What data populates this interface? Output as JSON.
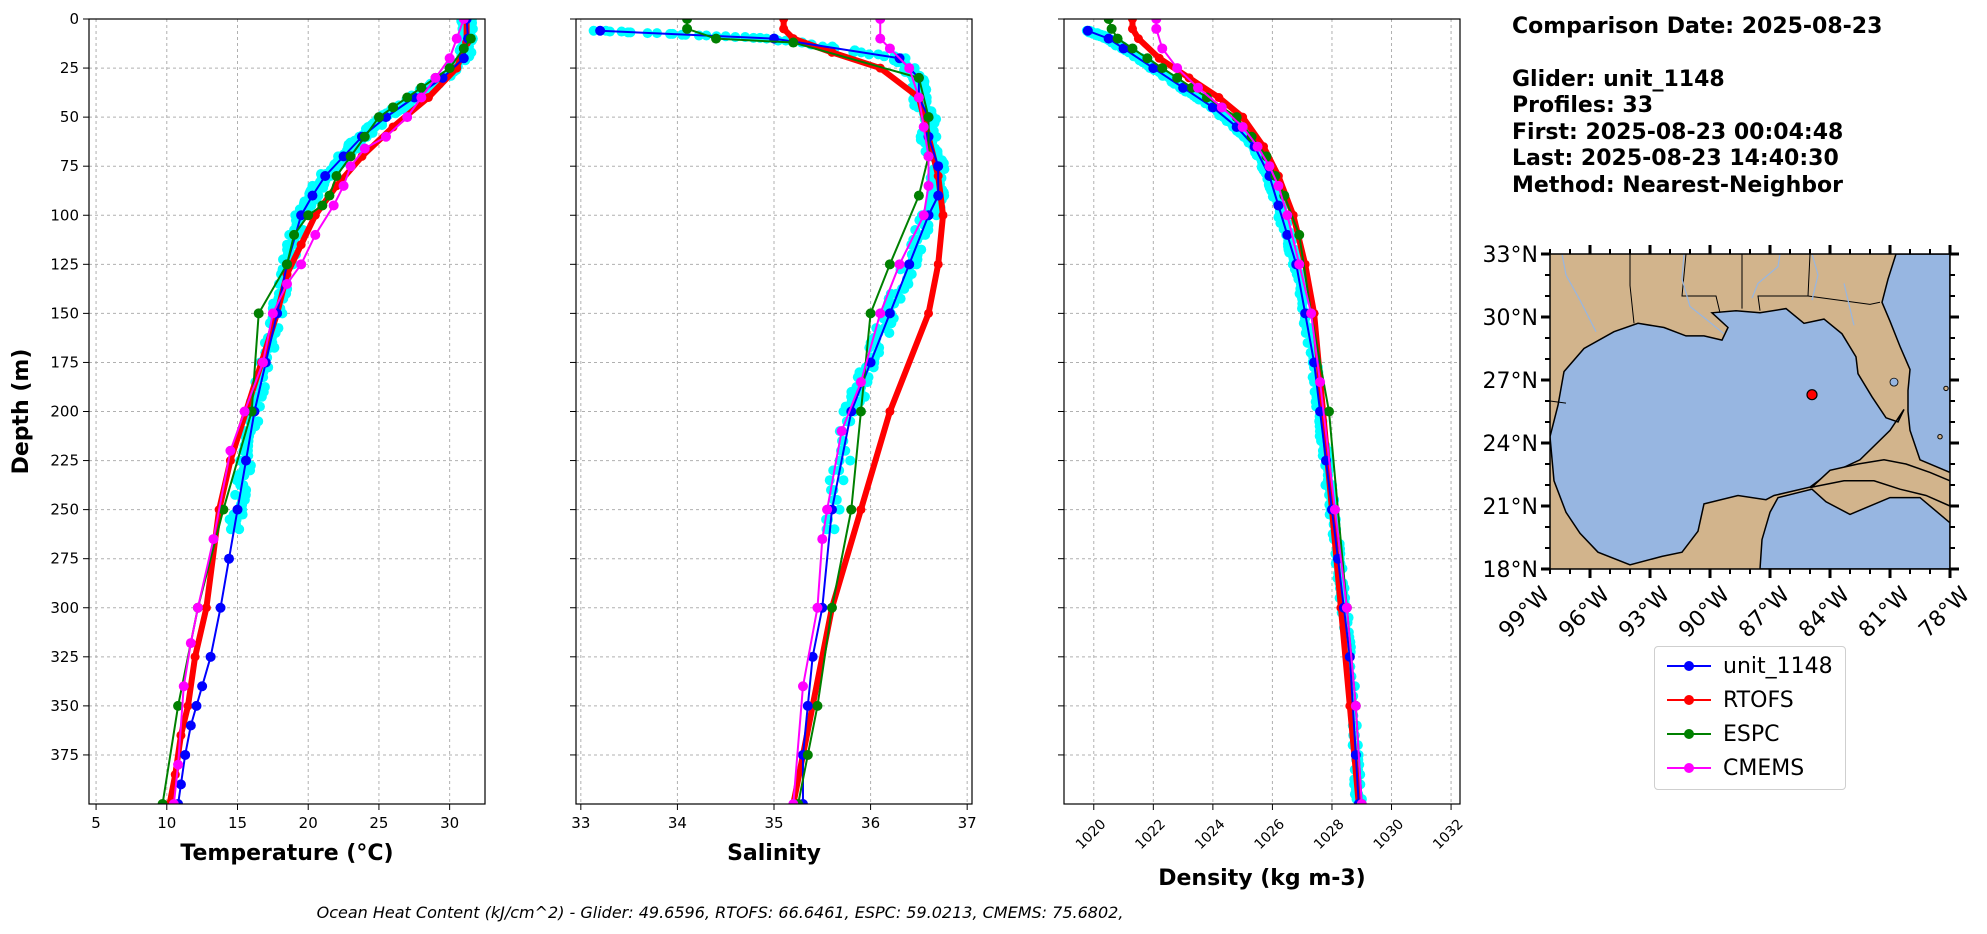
{
  "info": {
    "comparison": "Comparison Date: 2025-08-23",
    "glider": "Glider: unit_1148",
    "profiles": "Profiles: 33",
    "first": "First: 2025-08-23 00:04:48",
    "last": "Last: 2025-08-23 14:40:30",
    "method": "Method: Nearest-Neighbor"
  },
  "footer": "Ocean Heat Content (kJ/cm^2) - Glider: 49.6596,  RTOFS: 66.6461,  ESPC: 59.0213,  CMEMS: 75.6802,",
  "legend": [
    {
      "label": "unit_1148",
      "color": "#0000ff"
    },
    {
      "label": "RTOFS",
      "color": "#ff0000"
    },
    {
      "label": "ESPC",
      "color": "#008000"
    },
    {
      "label": "CMEMS",
      "color": "#ff00ff"
    }
  ],
  "glider_swath_color": "#00ffff",
  "chart_data": [
    {
      "type": "line",
      "xlabel": "Temperature (°C)",
      "ylabel": "Depth (m)",
      "xlim": [
        4.5,
        32.5
      ],
      "ylim": [
        400,
        0
      ],
      "xticks": [
        5,
        10,
        15,
        20,
        25,
        30
      ],
      "yticks": [
        0,
        25,
        50,
        75,
        100,
        125,
        150,
        175,
        200,
        225,
        250,
        275,
        300,
        325,
        350,
        375
      ],
      "grid": true,
      "series": [
        {
          "name": "unit_1148",
          "color": "#0000ff",
          "x": [
            31.2,
            31.3,
            31.0,
            29.5,
            27.5,
            25.5,
            23.8,
            22.5,
            21.2,
            20.3,
            19.5,
            18.5,
            17.8,
            17.0,
            16.2,
            15.6,
            15.0,
            14.4,
            13.8,
            13.1,
            12.5,
            12.1,
            11.7,
            11.3,
            11.0,
            10.8
          ],
          "y": [
            0,
            10,
            20,
            30,
            40,
            50,
            60,
            70,
            80,
            90,
            100,
            125,
            150,
            175,
            200,
            225,
            250,
            275,
            300,
            325,
            340,
            350,
            360,
            375,
            390,
            400
          ]
        },
        {
          "name": "RTOFS",
          "color": "#ff0000",
          "x": [
            31.2,
            31.2,
            30.5,
            28.5,
            26.0,
            23.8,
            22.0,
            20.5,
            19.5,
            18.5,
            17.8,
            16.7,
            15.6,
            14.5,
            13.7,
            12.8,
            12.0,
            11.5,
            11.0,
            10.6,
            10.2
          ],
          "y": [
            0,
            12,
            25,
            40,
            55,
            70,
            85,
            100,
            115,
            130,
            150,
            175,
            200,
            225,
            250,
            300,
            325,
            350,
            365,
            385,
            400
          ]
        },
        {
          "name": "ESPC",
          "color": "#008000",
          "x": [
            31.5,
            31.0,
            30.0,
            29.0,
            28.0,
            27.0,
            26.0,
            25.0,
            24.0,
            23.0,
            22.0,
            21.5,
            21.0,
            20.0,
            19.0,
            18.5,
            16.5,
            16.0,
            14.0,
            12.2,
            10.8,
            9.7
          ],
          "y": [
            10,
            15,
            25,
            30,
            35,
            40,
            45,
            50,
            60,
            70,
            80,
            90,
            95,
            100,
            110,
            125,
            150,
            200,
            250,
            300,
            350,
            400
          ]
        },
        {
          "name": "CMEMS",
          "color": "#ff00ff",
          "x": [
            31.0,
            30.5,
            30.0,
            29.0,
            28.0,
            27.0,
            25.5,
            24.0,
            23.0,
            22.5,
            21.8,
            20.5,
            19.5,
            18.5,
            17.5,
            16.8,
            15.5,
            14.5,
            13.3,
            12.2,
            11.7,
            11.2,
            10.8,
            10.5
          ],
          "y": [
            0,
            10,
            20,
            30,
            40,
            50,
            60,
            66,
            75,
            85,
            95,
            110,
            125,
            135,
            150,
            175,
            200,
            220,
            265,
            300,
            318,
            340,
            380,
            400
          ]
        }
      ]
    },
    {
      "type": "line",
      "xlabel": "Salinity",
      "xlim": [
        32.95,
        37.05
      ],
      "ylim": [
        400,
        0
      ],
      "xticks": [
        33,
        34,
        35,
        36,
        37
      ],
      "grid": true,
      "series": [
        {
          "name": "unit_1148",
          "color": "#0000ff",
          "x": [
            33.2,
            35.0,
            36.3,
            36.5,
            36.5,
            36.6,
            36.6,
            36.7,
            36.7,
            36.6,
            36.4,
            36.2,
            36.0,
            35.8,
            35.6,
            35.5,
            35.4,
            35.35,
            35.3,
            35.3
          ],
          "y": [
            6,
            10,
            20,
            30,
            40,
            50,
            60,
            75,
            90,
            100,
            125,
            150,
            175,
            200,
            250,
            300,
            325,
            350,
            375,
            400
          ]
        },
        {
          "name": "RTOFS",
          "color": "#ff0000",
          "x": [
            35.1,
            35.1,
            35.2,
            35.6,
            36.1,
            36.5,
            36.6,
            36.7,
            36.75,
            36.7,
            36.6,
            36.2,
            35.9,
            35.6,
            35.4,
            35.2
          ],
          "y": [
            0,
            5,
            10,
            17,
            25,
            40,
            60,
            80,
            100,
            125,
            150,
            200,
            250,
            300,
            350,
            400
          ]
        },
        {
          "name": "ESPC",
          "color": "#008000",
          "x": [
            34.1,
            34.1,
            34.4,
            35.2,
            36.5,
            36.6,
            36.6,
            36.5,
            36.2,
            36.0,
            35.9,
            35.8,
            35.6,
            35.45,
            35.35,
            35.25
          ],
          "y": [
            0,
            5,
            10,
            12,
            30,
            50,
            70,
            90,
            125,
            150,
            200,
            250,
            300,
            350,
            375,
            400
          ]
        },
        {
          "name": "CMEMS",
          "color": "#ff00ff",
          "x": [
            36.1,
            36.1,
            36.2,
            36.4,
            36.5,
            36.55,
            36.6,
            36.6,
            36.55,
            36.3,
            36.1,
            35.9,
            35.7,
            35.55,
            35.5,
            35.45,
            35.3,
            35.2
          ],
          "y": [
            0,
            10,
            15,
            25,
            40,
            55,
            70,
            85,
            100,
            125,
            150,
            185,
            210,
            250,
            265,
            300,
            340,
            400
          ]
        }
      ]
    },
    {
      "type": "line",
      "xlabel": "Density (kg m-3)",
      "xlim": [
        1019.0,
        1032.3
      ],
      "ylim": [
        400,
        0
      ],
      "xticks": [
        1020,
        1022,
        1024,
        1026,
        1028,
        1030,
        1032
      ],
      "grid": true,
      "series": [
        {
          "name": "unit_1148",
          "color": "#0000ff",
          "x": [
            1019.8,
            1020.5,
            1021.0,
            1022.0,
            1023.0,
            1024.0,
            1024.8,
            1025.4,
            1025.9,
            1026.2,
            1026.5,
            1026.8,
            1027.1,
            1027.4,
            1027.6,
            1027.8,
            1028.0,
            1028.2,
            1028.4,
            1028.6,
            1028.8,
            1028.9
          ],
          "y": [
            6,
            10,
            15,
            25,
            35,
            45,
            55,
            65,
            80,
            95,
            110,
            125,
            150,
            175,
            200,
            225,
            250,
            275,
            300,
            325,
            375,
            400
          ]
        },
        {
          "name": "RTOFS",
          "color": "#ff0000",
          "x": [
            1021.3,
            1021.3,
            1021.5,
            1022.2,
            1023.2,
            1024.2,
            1025.0,
            1025.7,
            1026.2,
            1026.7,
            1027.1,
            1027.4,
            1027.7,
            1028.0,
            1028.3,
            1028.6,
            1028.9
          ],
          "y": [
            0,
            5,
            10,
            20,
            30,
            40,
            50,
            65,
            80,
            100,
            125,
            150,
            200,
            250,
            300,
            350,
            400
          ]
        },
        {
          "name": "ESPC",
          "color": "#008000",
          "x": [
            1020.5,
            1020.6,
            1020.8,
            1021.3,
            1021.8,
            1022.3,
            1022.8,
            1023.3,
            1023.8,
            1024.3,
            1024.8,
            1025.3,
            1025.8,
            1026.1,
            1026.4,
            1026.9,
            1027.3,
            1027.9,
            1028.5,
            1028.8,
            1029.0
          ],
          "y": [
            0,
            5,
            10,
            15,
            20,
            25,
            30,
            35,
            40,
            45,
            50,
            60,
            70,
            80,
            90,
            110,
            150,
            200,
            300,
            350,
            400
          ]
        },
        {
          "name": "CMEMS",
          "color": "#ff00ff",
          "x": [
            1022.1,
            1022.1,
            1022.3,
            1022.8,
            1023.5,
            1024.3,
            1025.0,
            1025.5,
            1025.9,
            1026.2,
            1026.5,
            1026.9,
            1027.3,
            1027.6,
            1028.1,
            1028.5,
            1028.8,
            1029.0
          ],
          "y": [
            0,
            5,
            15,
            25,
            35,
            45,
            55,
            65,
            75,
            85,
            100,
            125,
            150,
            185,
            250,
            300,
            350,
            400
          ]
        }
      ]
    }
  ],
  "map": {
    "lat_ticks": [
      "33°N",
      "30°N",
      "27°N",
      "24°N",
      "21°N",
      "18°N"
    ],
    "lon_ticks": [
      "99°W",
      "96°W",
      "93°W",
      "90°W",
      "87°W",
      "84°W",
      "81°W",
      "78°W"
    ],
    "extent": {
      "lon": [
        -98,
        -78
      ],
      "lat": [
        18,
        33
      ]
    },
    "glider_position": {
      "lon": -84.9,
      "lat": 26.3
    },
    "land_color": "#d2b48c",
    "ocean_color": "#97b6e1"
  }
}
